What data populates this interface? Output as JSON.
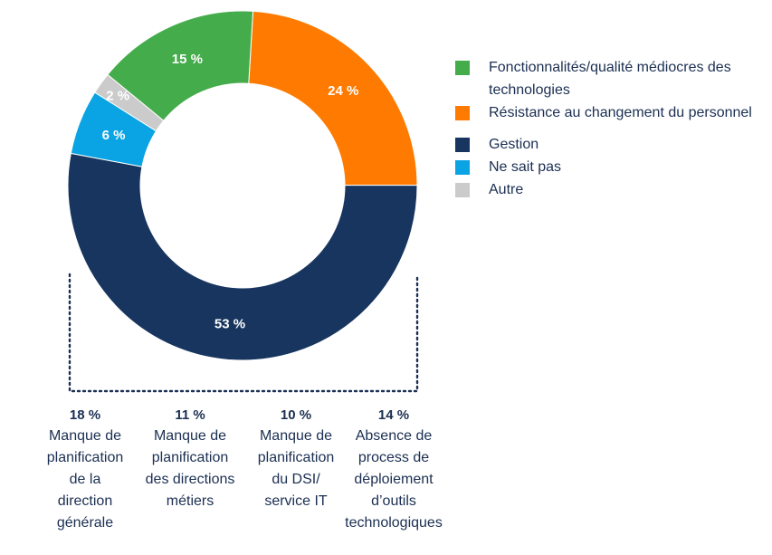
{
  "chart_data": {
    "type": "pie",
    "donut": true,
    "slices": [
      {
        "key": "orange",
        "label": "Résistance au changement du personnel",
        "value": 24,
        "value_label": "24 %",
        "color": "#ff7a00"
      },
      {
        "key": "navy",
        "label": "Gestion",
        "value": 53,
        "value_label": "53 %",
        "color": "#17355f"
      },
      {
        "key": "cyan",
        "label": "Ne sait pas",
        "value": 6,
        "value_label": "6 %",
        "color": "#0aa4e4"
      },
      {
        "key": "gray",
        "label": "Autre",
        "value": 2,
        "value_label": "2 %",
        "color": "#cbcbcb"
      },
      {
        "key": "green",
        "label": "Fonctionnalités/qualité médiocres des technologies",
        "value": 15,
        "value_label": "15 %",
        "color": "#44ac4b"
      }
    ],
    "legend": {
      "placement": "right",
      "items": [
        {
          "label": "Fonctionnalités/qualité médiocres des technologies",
          "color": "#44ac4b"
        },
        {
          "label": "Résistance au changement du personnel",
          "color": "#ff7a00"
        },
        {
          "label": "Gestion",
          "color": "#17355f"
        },
        {
          "label": "Ne sait pas",
          "color": "#0aa4e4"
        },
        {
          "label": "Autre",
          "color": "#cbcbcb"
        }
      ]
    },
    "breakdown": {
      "of": "Gestion",
      "items": [
        {
          "value": 18,
          "value_label": "18 %",
          "label": "Manque de planification de la direction générale"
        },
        {
          "value": 11,
          "value_label": "11 %",
          "label": "Manque de planification des directions métiers"
        },
        {
          "value": 10,
          "value_label": "10 %",
          "label": "Manque de planification du DSI/ service IT"
        },
        {
          "value": 14,
          "value_label": "14 %",
          "label": "Absence de process de déploiement d’outils technologiques"
        }
      ]
    }
  }
}
